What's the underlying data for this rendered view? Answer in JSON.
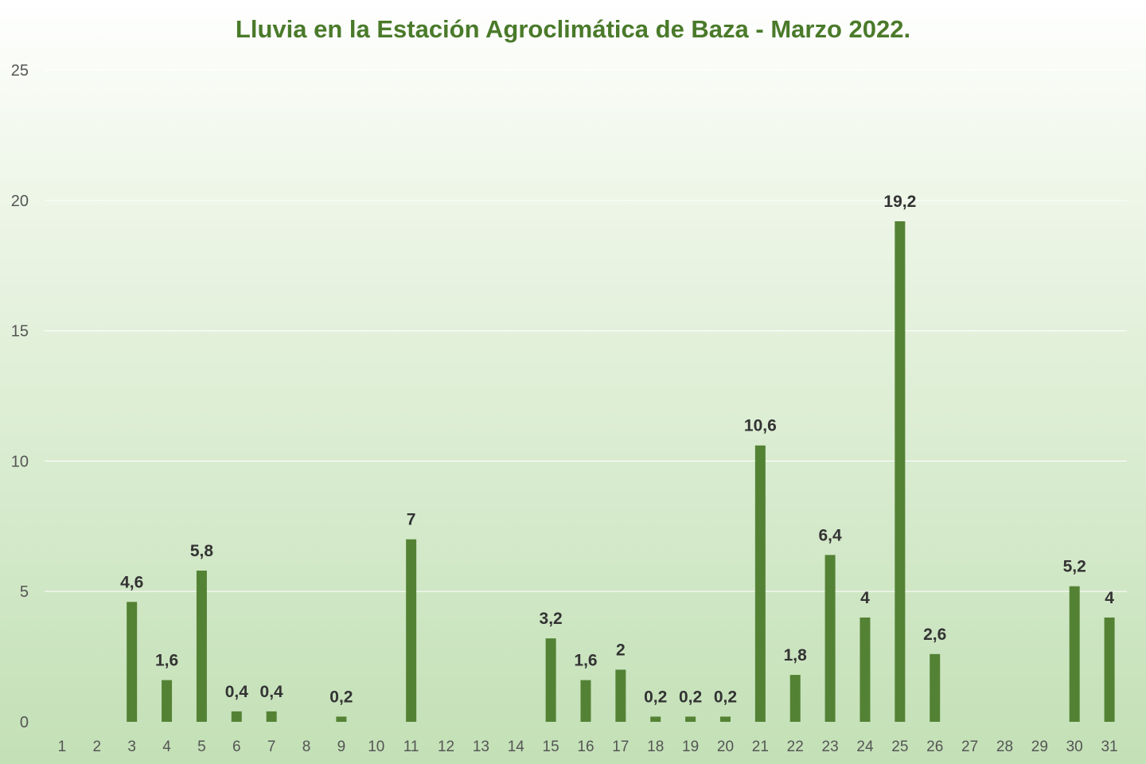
{
  "chart_data": {
    "type": "bar",
    "title": "Lluvia en la Estación Agroclimática de Baza - Marzo 2022.",
    "categories": [
      "1",
      "2",
      "3",
      "4",
      "5",
      "6",
      "7",
      "8",
      "9",
      "10",
      "11",
      "12",
      "13",
      "14",
      "15",
      "16",
      "17",
      "18",
      "19",
      "20",
      "21",
      "22",
      "23",
      "24",
      "25",
      "26",
      "27",
      "28",
      "29",
      "30",
      "31"
    ],
    "values": [
      0,
      0,
      4.6,
      1.6,
      5.8,
      0.4,
      0.4,
      0,
      0.2,
      0,
      7,
      0,
      0,
      0,
      3.2,
      1.6,
      2,
      0.2,
      0.2,
      0.2,
      10.6,
      1.8,
      6.4,
      4,
      19.2,
      2.6,
      0,
      0,
      0,
      5.2,
      4
    ],
    "data_labels": [
      "",
      "",
      "4,6",
      "1,6",
      "5,8",
      "0,4",
      "0,4",
      "",
      "0,2",
      "",
      "7",
      "",
      "",
      "",
      "3,2",
      "1,6",
      "2",
      "0,2",
      "0,2",
      "0,2",
      "10,6",
      "1,8",
      "6,4",
      "4",
      "19,2",
      "2,6",
      "",
      "",
      "",
      "5,2",
      "4"
    ],
    "ylim": [
      0,
      25
    ],
    "yticks": [
      "0",
      "5",
      "10",
      "15",
      "20",
      "25"
    ],
    "grid": true,
    "bar_color": "#548235",
    "title_color": "#4a7a2a"
  }
}
